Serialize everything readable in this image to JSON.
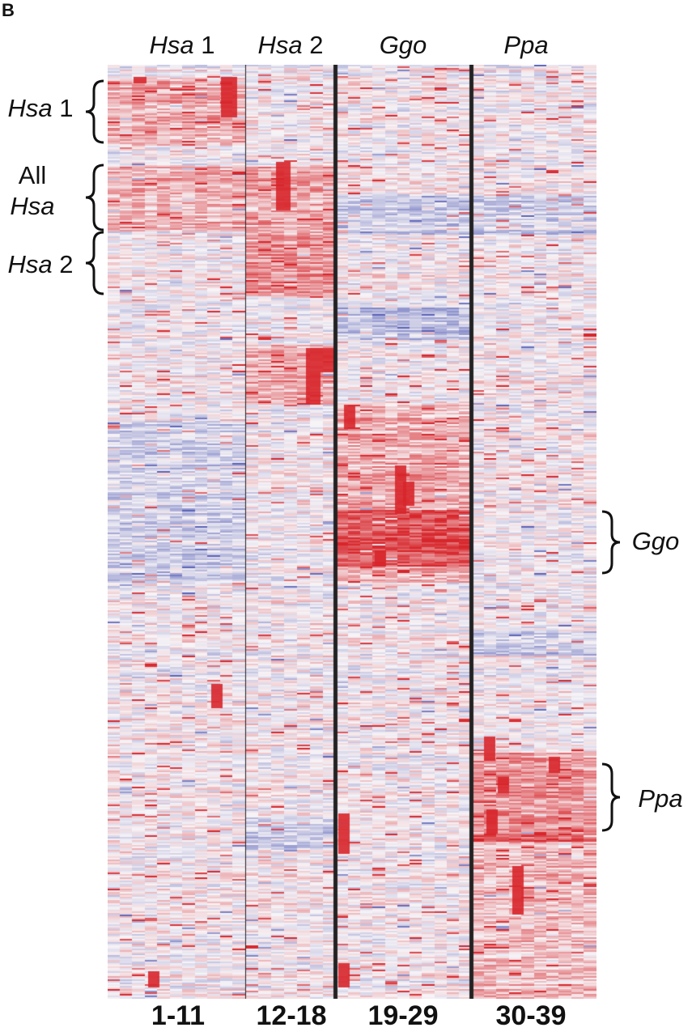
{
  "panel_letter": "B",
  "column_groups": [
    {
      "name": "Hsa",
      "suffix": " 1",
      "samples": "1-11"
    },
    {
      "name": "Hsa",
      "suffix": " 2",
      "samples": "12-18"
    },
    {
      "name": "Ggo",
      "suffix": "",
      "samples": "19-29"
    },
    {
      "name": "Ppa",
      "suffix": "",
      "samples": "30-39"
    }
  ],
  "row_clusters": {
    "hsa1": {
      "name": "Hsa",
      "suffix": " 1"
    },
    "all_hsa": {
      "prefix": "All",
      "name": "Hsa"
    },
    "hsa2": {
      "name": "Hsa",
      "suffix": " 2"
    },
    "ggo": {
      "name": "Ggo"
    },
    "ppa": {
      "name": "Ppa"
    }
  },
  "chart_data": {
    "type": "heatmap",
    "columns": 39,
    "column_group_sizes": [
      11,
      7,
      11,
      10
    ],
    "color_scale": {
      "high": "#d7262b",
      "mid": "#f7f4f7",
      "low": "#5a63b8"
    },
    "grid": false,
    "legend": "none"
  }
}
